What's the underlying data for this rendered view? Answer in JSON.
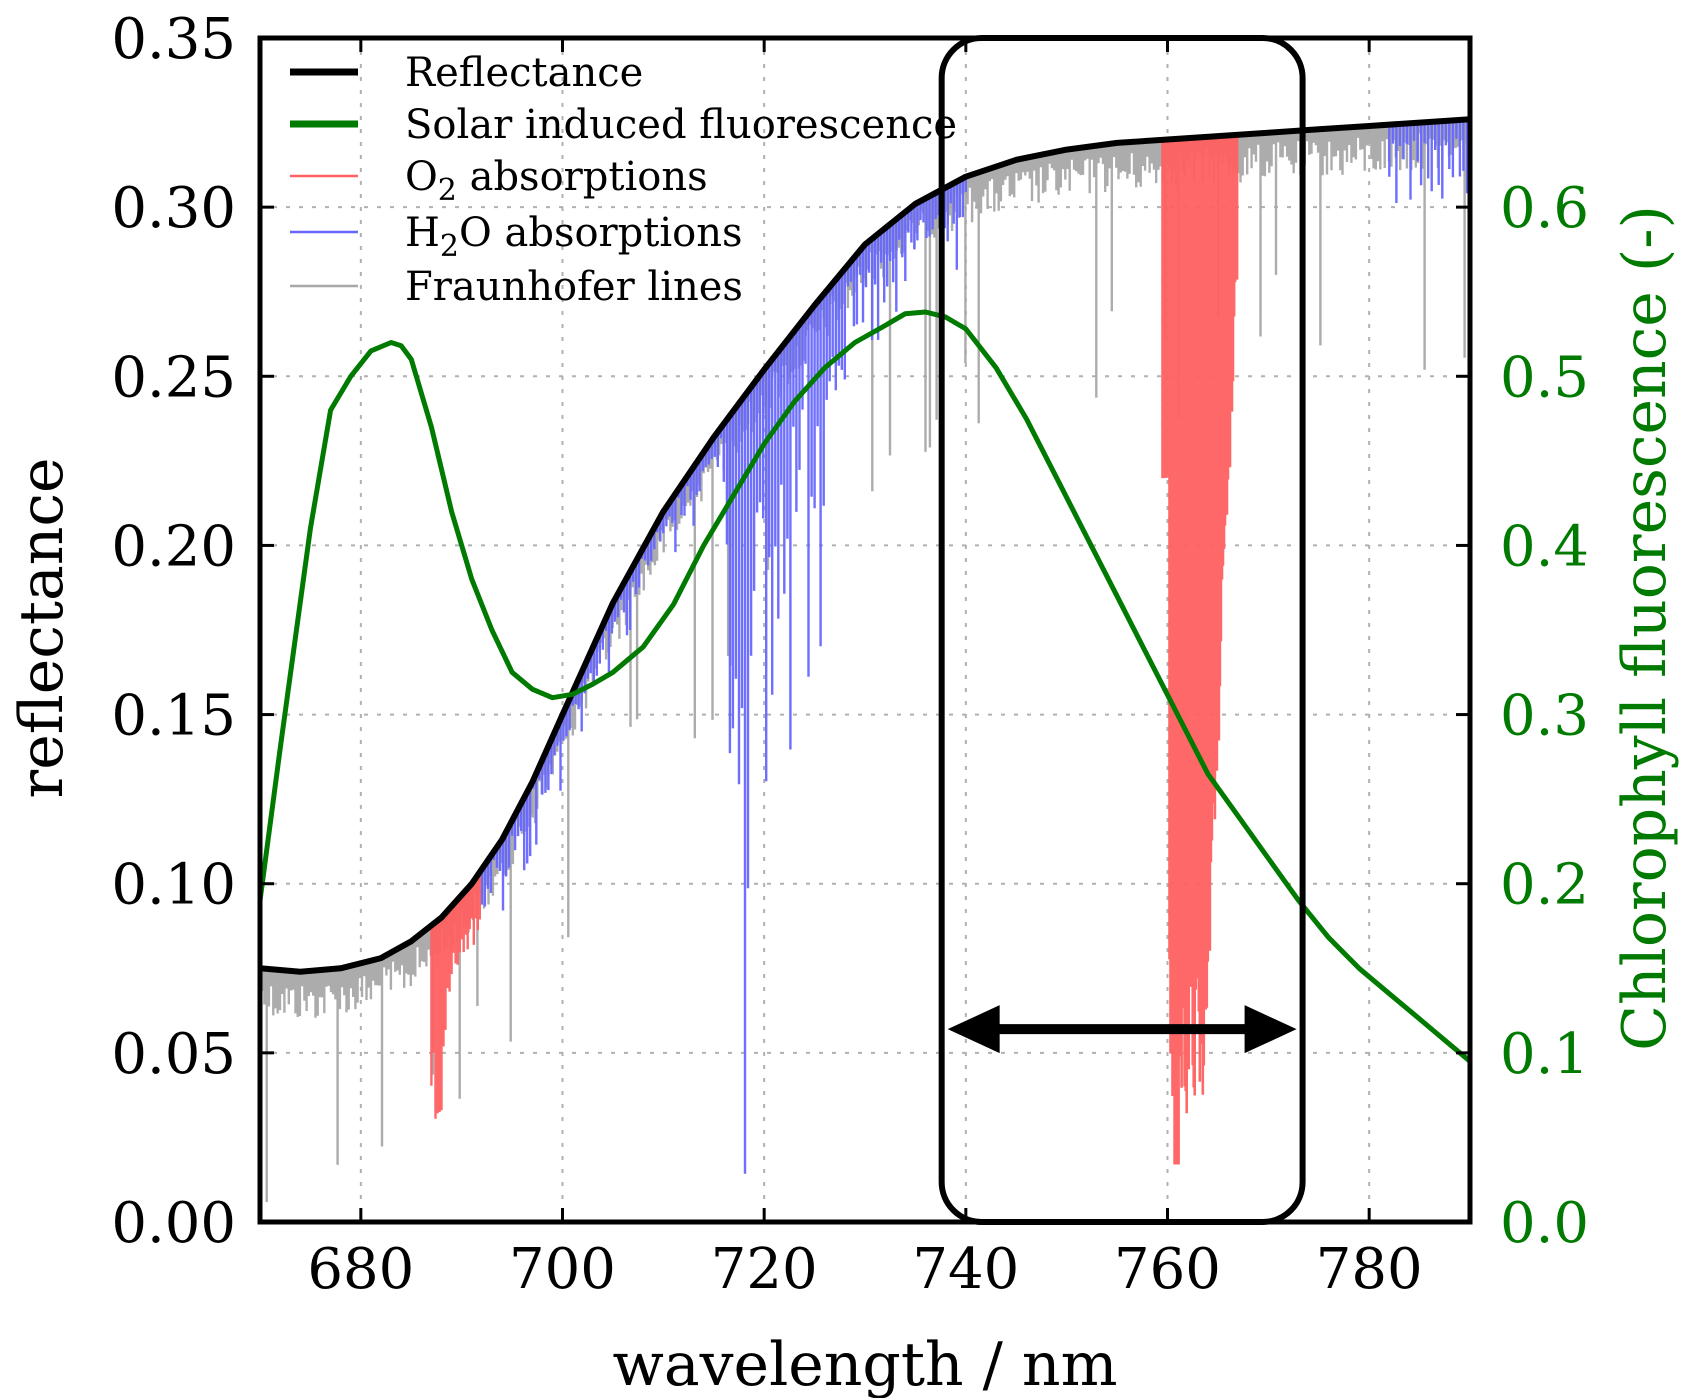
{
  "chart_data": {
    "type": "line",
    "xlabel": "wavelength / nm",
    "ylabel": "reflectance",
    "ylabel_right": "Chlorophyll fluorescence (-)",
    "xlim": [
      670,
      790
    ],
    "ylim": [
      0,
      0.35
    ],
    "ylim_right": [
      0,
      0.7
    ],
    "x_ticks": [
      "680",
      "700",
      "720",
      "740",
      "760",
      "780"
    ],
    "y_ticks": [
      "0.00",
      "0.05",
      "0.10",
      "0.15",
      "0.20",
      "0.25",
      "0.30",
      "0.35"
    ],
    "y_ticks_right": [
      "0.0",
      "0.1",
      "0.2",
      "0.3",
      "0.4",
      "0.5",
      "0.6"
    ],
    "grid": true,
    "legend_position": "top-left",
    "legend": [
      {
        "label": "Reflectance",
        "color": "#000000"
      },
      {
        "label": "Solar induced fluorescence",
        "color": "#007a00"
      },
      {
        "label": "O2 absorptions",
        "label_main": "O",
        "label_sub": "2",
        "label_rest": " absorptions",
        "color": "#ff6060"
      },
      {
        "label": "H2O absorptions",
        "label_main": "H",
        "label_sub": "2",
        "label_rest": "O absorptions",
        "color": "#6666ff"
      },
      {
        "label": "Fraunhofer lines",
        "color": "#a8a8a8"
      }
    ],
    "series": [
      {
        "name": "Reflectance",
        "axis": "left",
        "color": "#000000",
        "x": [
          670,
          674,
          678,
          682,
          685,
          688,
          691,
          694,
          697,
          700,
          705,
          710,
          715,
          720,
          725,
          730,
          735,
          740,
          745,
          750,
          755,
          760,
          765,
          770,
          775,
          780,
          785,
          790
        ],
        "y": [
          0.075,
          0.074,
          0.075,
          0.078,
          0.083,
          0.09,
          0.1,
          0.113,
          0.13,
          0.15,
          0.183,
          0.21,
          0.232,
          0.252,
          0.271,
          0.289,
          0.301,
          0.309,
          0.314,
          0.317,
          0.319,
          0.32,
          0.321,
          0.322,
          0.323,
          0.324,
          0.325,
          0.326
        ]
      },
      {
        "name": "Solar induced fluorescence",
        "axis": "right",
        "color": "#007a00",
        "x": [
          670,
          672,
          675,
          677,
          679,
          681,
          683,
          684,
          685,
          687,
          689,
          691,
          693,
          695,
          697,
          699,
          701,
          703,
          705,
          708,
          711,
          714,
          717,
          720,
          723,
          726,
          729,
          732,
          734,
          736,
          738,
          740,
          743,
          746,
          749,
          752,
          755,
          758,
          761,
          764,
          767,
          770,
          773,
          776,
          779,
          782,
          785,
          788,
          790
        ],
        "y": [
          0.19,
          0.28,
          0.41,
          0.48,
          0.5,
          0.515,
          0.52,
          0.518,
          0.51,
          0.47,
          0.42,
          0.38,
          0.35,
          0.325,
          0.315,
          0.31,
          0.312,
          0.318,
          0.325,
          0.34,
          0.365,
          0.4,
          0.43,
          0.46,
          0.485,
          0.505,
          0.52,
          0.53,
          0.537,
          0.538,
          0.535,
          0.528,
          0.505,
          0.475,
          0.44,
          0.405,
          0.37,
          0.335,
          0.3,
          0.265,
          0.24,
          0.215,
          0.19,
          0.168,
          0.15,
          0.135,
          0.12,
          0.105,
          0.095
        ]
      }
    ],
    "absorption_regions": [
      {
        "name": "O2 absorptions",
        "color": "#ff6060",
        "ranges": [
          [
            687,
            692
          ],
          [
            759.5,
            767
          ]
        ],
        "min_values": [
          0.038,
          0.017
        ]
      },
      {
        "name": "H2O absorptions",
        "color": "#6666ff",
        "ranges": [
          [
            692,
            740
          ],
          [
            782,
            790
          ]
        ],
        "min_values": [
          0.095,
          0.29
        ]
      },
      {
        "name": "Fraunhofer lines",
        "color": "#a8a8a8",
        "ranges": [
          [
            670,
            790
          ]
        ]
      }
    ],
    "annotations": [
      {
        "type": "rounded-box",
        "x_range": [
          738,
          773
        ],
        "y_range": [
          0,
          0.35
        ]
      },
      {
        "type": "double-arrow",
        "x_range": [
          738,
          773
        ],
        "y": 0.057
      }
    ]
  }
}
